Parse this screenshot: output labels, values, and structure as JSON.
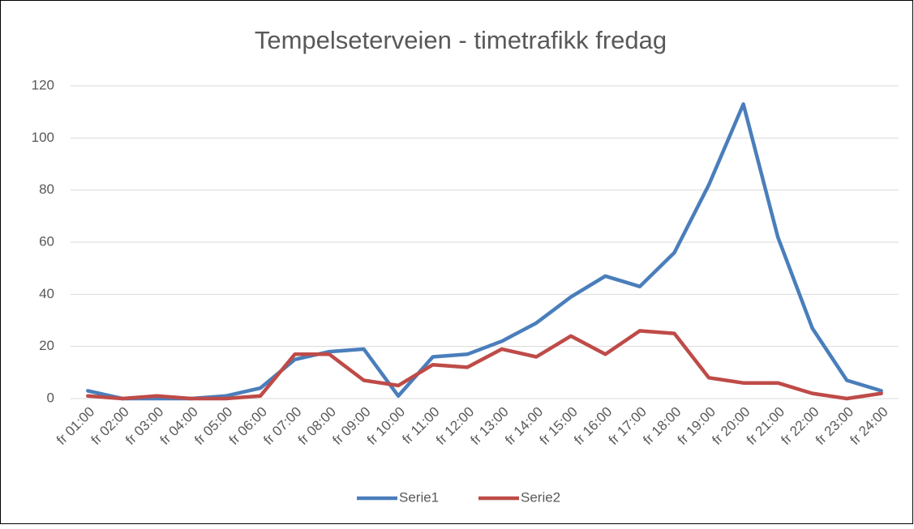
{
  "chart_data": {
    "type": "line",
    "title": "Tempelseterveien - timetrafikk fredag",
    "categories": [
      "fr 01:00",
      "fr 02:00",
      "fr 03:00",
      "fr 04:00",
      "fr 05:00",
      "fr 06:00",
      "fr 07:00",
      "fr 08:00",
      "fr 09:00",
      "fr 10:00",
      "fr 11:00",
      "fr 12:00",
      "fr 13:00",
      "fr 14:00",
      "fr 15:00",
      "fr 16:00",
      "fr 17:00",
      "fr 18:00",
      "fr 19:00",
      "fr 20:00",
      "fr 21:00",
      "fr 22:00",
      "fr 23:00",
      "fr 24:00"
    ],
    "series": [
      {
        "name": "Serie1",
        "color": "#4a7ebb",
        "values": [
          3,
          0,
          0,
          0,
          1,
          4,
          15,
          18,
          19,
          1,
          16,
          17,
          22,
          29,
          39,
          47,
          43,
          56,
          82,
          113,
          62,
          27,
          7,
          3
        ]
      },
      {
        "name": "Serie2",
        "color": "#be4b48",
        "values": [
          1,
          0,
          1,
          0,
          0,
          1,
          17,
          17,
          7,
          5,
          13,
          12,
          19,
          16,
          24,
          17,
          26,
          25,
          8,
          6,
          6,
          2,
          0,
          2
        ]
      }
    ],
    "ylim": [
      0,
      120
    ],
    "yticks": [
      0,
      20,
      40,
      60,
      80,
      100,
      120
    ],
    "grid": true,
    "legend": "bottom"
  }
}
